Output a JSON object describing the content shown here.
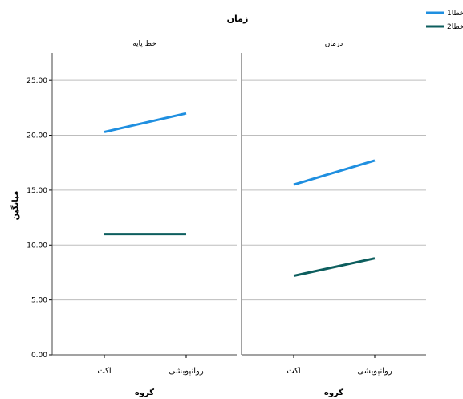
{
  "chart_data": {
    "type": "line",
    "title": "زمان",
    "ylabel": "میانگین",
    "xlabel": "گروه",
    "ylim": [
      0,
      27.5
    ],
    "yticks": [
      "0.00",
      "5.00",
      "10.00",
      "15.00",
      "20.00",
      "25.00"
    ],
    "ytick_values": [
      0,
      5,
      10,
      15,
      20,
      25
    ],
    "grid": true,
    "legend_position": "top-right",
    "categories": [
      "اکت",
      "روانپویشی"
    ],
    "panels": [
      {
        "label": "خط پایه",
        "series": [
          {
            "name": "خطا1",
            "color": "#1f8fe0",
            "values": [
              20.3,
              22.0
            ]
          },
          {
            "name": "خطا2",
            "color": "#0d5e5e",
            "values": [
              11.0,
              11.0
            ]
          }
        ]
      },
      {
        "label": "درمان",
        "series": [
          {
            "name": "خطا1",
            "color": "#1f8fe0",
            "values": [
              15.5,
              17.7
            ]
          },
          {
            "name": "خطا2",
            "color": "#0d5e5e",
            "values": [
              7.2,
              8.8
            ]
          }
        ]
      }
    ]
  }
}
